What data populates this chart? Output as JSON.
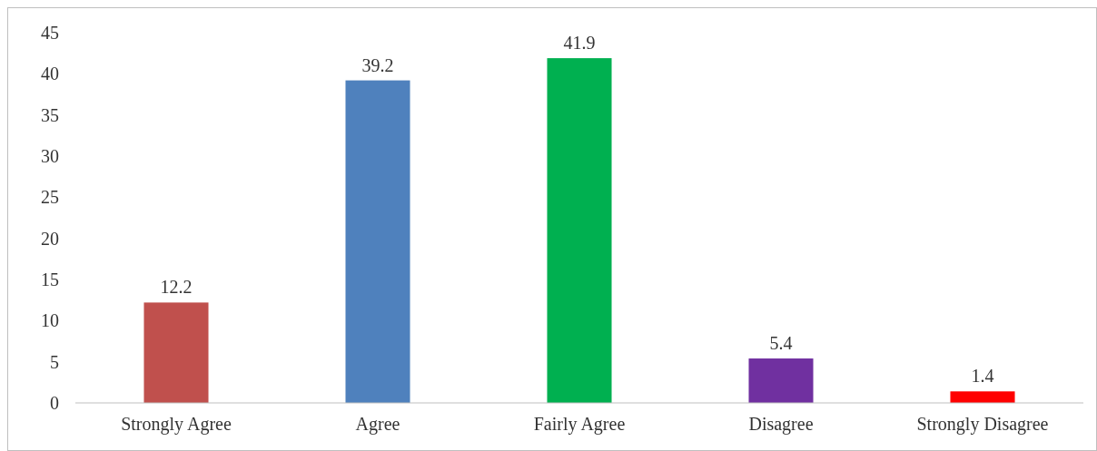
{
  "chart_data": {
    "type": "bar",
    "categories": [
      "Strongly Agree",
      "Agree",
      "Fairly Agree",
      "Disagree",
      "Strongly Disagree"
    ],
    "values": [
      12.2,
      39.2,
      41.9,
      5.4,
      1.4
    ],
    "colors": [
      "#c0504d",
      "#4f81bd",
      "#00b050",
      "#7030a0",
      "#ff0000"
    ],
    "ylim": [
      0,
      45
    ],
    "yticks": [
      0,
      5,
      10,
      15,
      20,
      25,
      30,
      35,
      40,
      45
    ],
    "grid": false,
    "data_labels": true
  }
}
